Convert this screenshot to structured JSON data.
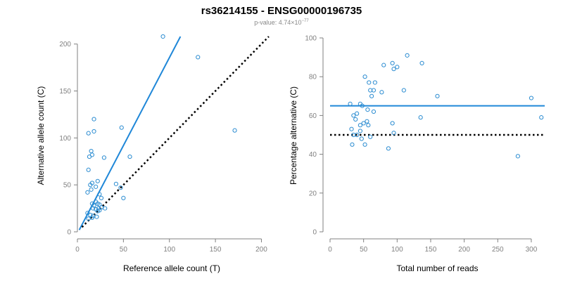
{
  "header": {
    "title": "rs36214155 - ENSG00000196735",
    "pvalue_prefix": "p-value: 4.74×10",
    "pvalue_exponent": "−77"
  },
  "colors": {
    "point": "#2b8cd1",
    "fit_line": "#1f87d8",
    "reference_line": "#000000",
    "axis": "#808080"
  },
  "chart_data": [
    {
      "type": "scatter",
      "xlabel": "Reference allele count (T)",
      "ylabel": "Alternative allele count (C)",
      "xlim": [
        0,
        205
      ],
      "ylim": [
        0,
        205
      ],
      "xticks": [
        0,
        50,
        100,
        150,
        200
      ],
      "yticks": [
        0,
        50,
        100,
        150,
        200
      ],
      "points": [
        [
          93,
          208
        ],
        [
          131,
          186
        ],
        [
          171,
          108
        ],
        [
          48,
          111
        ],
        [
          57,
          80
        ],
        [
          18,
          120
        ],
        [
          18,
          107
        ],
        [
          12,
          105
        ],
        [
          15,
          86
        ],
        [
          16,
          82
        ],
        [
          13,
          80
        ],
        [
          29,
          79
        ],
        [
          12,
          66
        ],
        [
          22,
          54
        ],
        [
          16,
          52
        ],
        [
          20,
          48
        ],
        [
          11,
          42
        ],
        [
          15,
          45
        ],
        [
          42,
          51
        ],
        [
          14,
          50
        ],
        [
          47,
          47
        ],
        [
          24,
          40
        ],
        [
          26,
          36
        ],
        [
          50,
          36
        ],
        [
          16,
          30
        ],
        [
          18,
          28
        ],
        [
          22,
          30
        ],
        [
          24,
          29
        ],
        [
          17,
          25
        ],
        [
          20,
          24
        ],
        [
          23,
          25
        ],
        [
          26,
          26
        ],
        [
          30,
          25
        ],
        [
          22,
          22
        ],
        [
          24,
          23
        ],
        [
          11,
          20
        ],
        [
          14,
          18
        ],
        [
          17,
          17
        ],
        [
          21,
          16
        ],
        [
          12,
          14
        ],
        [
          16,
          15
        ],
        [
          20,
          32
        ]
      ],
      "lines": [
        {
          "style": "solid",
          "color": "#1f87d8",
          "from": [
            2,
            2
          ],
          "to": [
            112,
            208
          ]
        },
        {
          "style": "dotted",
          "color": "#000000",
          "from": [
            5,
            5
          ],
          "to": [
            208,
            208
          ]
        }
      ]
    },
    {
      "type": "scatter",
      "xlabel": "Total number of reads",
      "ylabel": "Percentage alternative (C)",
      "xlim": [
        0,
        320
      ],
      "ylim": [
        0,
        100
      ],
      "xticks": [
        0,
        50,
        100,
        150,
        200,
        250,
        300
      ],
      "yticks": [
        0,
        20,
        40,
        60,
        80,
        100
      ],
      "points": [
        [
          115,
          91
        ],
        [
          93,
          87
        ],
        [
          137,
          87
        ],
        [
          80,
          86
        ],
        [
          100,
          85
        ],
        [
          95,
          84
        ],
        [
          52,
          80
        ],
        [
          67,
          77
        ],
        [
          58,
          77
        ],
        [
          60,
          73
        ],
        [
          65,
          73
        ],
        [
          77,
          72
        ],
        [
          110,
          73
        ],
        [
          62,
          70
        ],
        [
          160,
          70
        ],
        [
          30,
          66
        ],
        [
          45,
          66
        ],
        [
          48,
          65
        ],
        [
          56,
          63
        ],
        [
          65,
          62
        ],
        [
          40,
          61
        ],
        [
          38,
          58
        ],
        [
          50,
          56
        ],
        [
          55,
          57
        ],
        [
          57,
          55
        ],
        [
          35,
          60
        ],
        [
          32,
          53
        ],
        [
          35,
          50
        ],
        [
          40,
          50
        ],
        [
          45,
          52
        ],
        [
          47,
          48
        ],
        [
          60,
          49
        ],
        [
          93,
          56
        ],
        [
          95,
          51
        ],
        [
          135,
          59
        ],
        [
          300,
          69
        ],
        [
          315,
          59
        ],
        [
          33,
          45
        ],
        [
          52,
          45
        ],
        [
          87,
          43
        ],
        [
          280,
          39
        ],
        [
          45,
          55
        ]
      ],
      "lines": [
        {
          "style": "solid",
          "color": "#1f87d8",
          "from": [
            0,
            65
          ],
          "to": [
            320,
            65
          ]
        },
        {
          "style": "dotted",
          "color": "#000000",
          "from": [
            0,
            50
          ],
          "to": [
            320,
            50
          ]
        }
      ]
    }
  ]
}
